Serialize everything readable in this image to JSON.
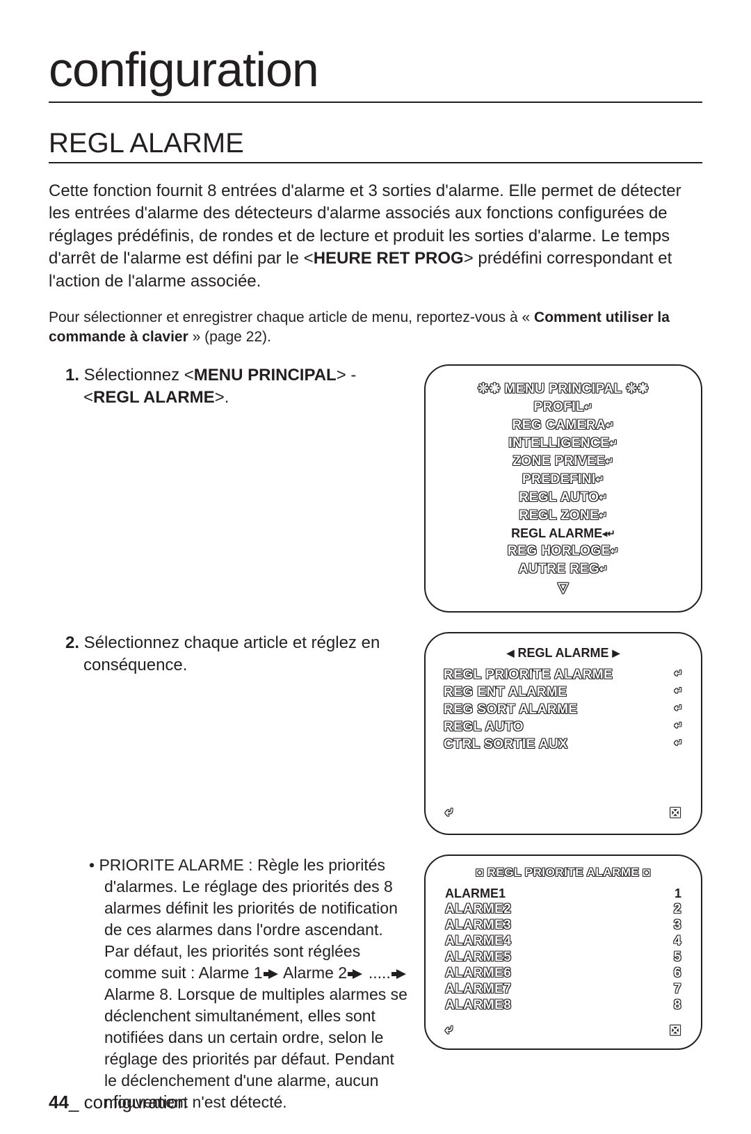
{
  "page": {
    "number": "44",
    "section": "configuration",
    "main_title": "configuration",
    "heading": "REGL ALARME",
    "intro_plain1": "Cette fonction fournit 8 entrées d'alarme et 3 sorties d'alarme. Elle permet de détecter les entrées d'alarme des détecteurs d'alarme associés aux fonctions configurées de réglages prédéfinis, de rondes et de lecture et produit les sorties d'alarme. Le temps d'arrêt de l'alarme est défini par le <",
    "intro_bold1": "HEURE RET PROG",
    "intro_plain2": "> prédéfini correspondant et l'action de l'alarme associée.",
    "note_plain1": "Pour sélectionner et enregistrer chaque article de menu, reportez-vous à « ",
    "note_bold": "Comment utiliser la commande à clavier",
    "note_plain2": " » (page 22).",
    "step1_num": "1.",
    "step1_a": " Sélectionnez <",
    "step1_b": "MENU PRINCIPAL",
    "step1_c": "> - <",
    "step1_d": "REGL ALARME",
    "step1_e": ">.",
    "step2_num": "2.",
    "step2_txt": " Sélectionnez chaque article et réglez en conséquence.",
    "bullet_text": "PRIORITE ALARME : Règle les priorités d'alarmes. Le réglage des priorités des 8 alarmes définit les priorités de notification de ces alarmes dans l'ordre ascendant. Par défaut, les priorités sont réglées comme suit : Alarme 1 ",
    "bullet_text2": " Alarme 2 ",
    "bullet_text3": " ..... ",
    "bullet_text4": " Alarme 8. Lorsque de multiples alarmes se déclenchent simultanément, elles sont notifiées dans un certain ordre, selon le réglage des priorités par défaut. Pendant le déclenchement d'une alarme, aucun mouvement n'est détecté."
  },
  "menu1": {
    "title_dec": "❊❋",
    "title": "MENU PRINCIPAL",
    "items": [
      "PROFIL",
      "REG CAMERA",
      "INTELLIGENCE",
      "ZONE PRIVEE",
      "PREDEFINI",
      "REGL AUTO",
      "REGL ZONE"
    ],
    "selected": "REGL ALARME",
    "items_after": [
      "REG HORLOGE",
      "AUTRE REG"
    ],
    "down": "▽"
  },
  "menu2": {
    "title": "REGL ALARME",
    "items": [
      "REGL PRIORITE ALARME",
      "REG ENT ALARME",
      "REG SORT ALARME",
      "REGL AUTO",
      "CTRL SORTIE AUX"
    ],
    "back": "⤶",
    "close": "⊠"
  },
  "menu3": {
    "title_dec": "◘",
    "title": "REGL PRIORITE ALARME",
    "rows": [
      {
        "label": "ALARME1",
        "val": "1",
        "sel": true
      },
      {
        "label": "ALARME2",
        "val": "2",
        "sel": false
      },
      {
        "label": "ALARME3",
        "val": "3",
        "sel": false
      },
      {
        "label": "ALARME4",
        "val": "4",
        "sel": false
      },
      {
        "label": "ALARME5",
        "val": "5",
        "sel": false
      },
      {
        "label": "ALARME6",
        "val": "6",
        "sel": false
      },
      {
        "label": "ALARME7",
        "val": "7",
        "sel": false
      },
      {
        "label": "ALARME8",
        "val": "8",
        "sel": false
      }
    ],
    "back": "⤶",
    "close": "⊠"
  },
  "icons": {
    "enter": "↵"
  }
}
